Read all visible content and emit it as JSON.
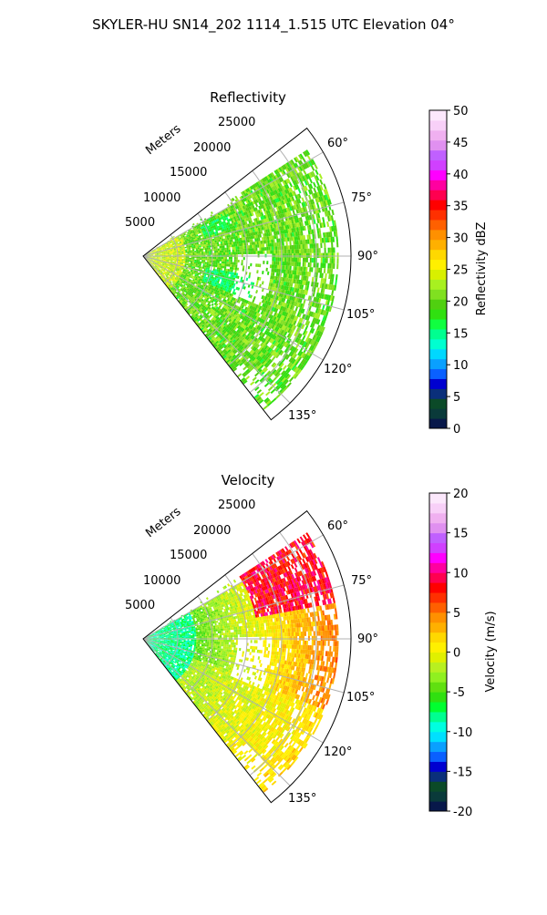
{
  "figure": {
    "title": "SKYLER-HU  SN14_202  1114_1.515 UTC Elevation 04°"
  },
  "chart_data": [
    {
      "type": "heatmap",
      "subtype": "polar-sector-ppi",
      "title": "Reflectivity",
      "range_axis_label": "Meters",
      "range_ticks": [
        "5000",
        "10000",
        "15000",
        "20000",
        "25000"
      ],
      "range_max": 30000,
      "azimuth_ticks": [
        "60°",
        "75°",
        "90°",
        "105°",
        "120°",
        "135°"
      ],
      "azimuth_range_deg": [
        52,
        142
      ],
      "grid": true,
      "colorbar": {
        "label": "Reflectivity dBZ",
        "min": 0,
        "max": 50,
        "ticks": [
          "0",
          "5",
          "10",
          "15",
          "20",
          "25",
          "30",
          "35",
          "40",
          "45",
          "50"
        ]
      },
      "field_description_values": {
        "near_range_dbz": 24,
        "typical_dbz": 20,
        "sparse_patch_dbz": 14
      }
    },
    {
      "type": "heatmap",
      "subtype": "polar-sector-ppi",
      "title": "Velocity",
      "range_axis_label": "Meters",
      "range_ticks": [
        "5000",
        "10000",
        "15000",
        "20000",
        "25000"
      ],
      "range_max": 30000,
      "azimuth_ticks": [
        "60°",
        "75°",
        "90°",
        "105°",
        "120°",
        "135°"
      ],
      "azimuth_range_deg": [
        52,
        142
      ],
      "grid": true,
      "colorbar": {
        "label": "Velocity (m/s)",
        "min": -20,
        "max": 20,
        "ticks": [
          "-20",
          "-15",
          "-10",
          "-5",
          "0",
          "5",
          "10",
          "15",
          "20"
        ]
      },
      "field_description_values": {
        "near_range_ms": -8,
        "mid_range_ms": 0,
        "far_north_ms": 10
      }
    }
  ],
  "colormaps": {
    "reflectivity": [
      "#08184a",
      "#0a3a3a",
      "#0b4a28",
      "#0a2f7a",
      "#0000d0",
      "#0a60ff",
      "#0aa0ff",
      "#00d8ff",
      "#00ffd0",
      "#00ff90",
      "#10ff40",
      "#30e010",
      "#50d010",
      "#80e020",
      "#a8f020",
      "#d8f000",
      "#fff000",
      "#ffd800",
      "#ffb000",
      "#ff9000",
      "#ff6000",
      "#ff3000",
      "#ff0000",
      "#ff0050",
      "#ff00a0",
      "#ff00ff",
      "#d040ff",
      "#c060ff",
      "#e090f0",
      "#f0b0f0",
      "#f8d0f8",
      "#fce8fc"
    ],
    "velocity": [
      "#08184a",
      "#0a3a3a",
      "#0b4a28",
      "#0a2f7a",
      "#0000d0",
      "#0a60ff",
      "#0aa0ff",
      "#00e0ff",
      "#00ffe0",
      "#00ff90",
      "#00ff30",
      "#30e010",
      "#60e010",
      "#90f020",
      "#b8f020",
      "#e0f000",
      "#fff000",
      "#ffd800",
      "#ffb000",
      "#ff9000",
      "#ff6000",
      "#ff3000",
      "#ff0000",
      "#ff0050",
      "#ff00a0",
      "#ff00ff",
      "#d040ff",
      "#c060ff",
      "#e090f0",
      "#f0b0f0",
      "#f8d0f8",
      "#fce8fc"
    ]
  }
}
